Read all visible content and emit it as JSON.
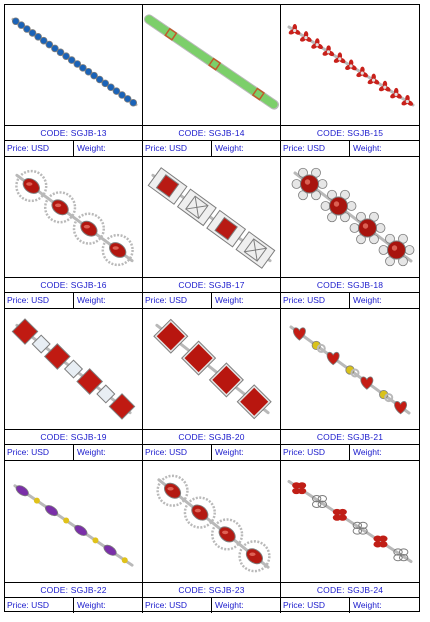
{
  "products": [
    {
      "code": "CODE: SGJB-13",
      "price": "Price: USD",
      "weight": "Weight:",
      "image": "blue-gem-tennis-bracelet",
      "gem_color": "#1a63b8",
      "accent_color": "#0e3f80"
    },
    {
      "code": "CODE: SGJB-14",
      "price": "Price: USD",
      "weight": "Weight:",
      "image": "green-gem-link-bracelet",
      "gem_color": "#7ccf6a",
      "accent_color": "#c05a2a"
    },
    {
      "code": "CODE: SGJB-15",
      "price": "Price: USD",
      "weight": "Weight:",
      "image": "red-gem-flower-bracelet",
      "gem_color": "#c8201a",
      "accent_color": "#e0e0e0"
    },
    {
      "code": "CODE: SGJB-16",
      "price": "Price: USD",
      "weight": "Weight:",
      "image": "garnet-oval-filigree-bracelet",
      "gem_color": "#b2160f",
      "accent_color": "#cfcfcf"
    },
    {
      "code": "CODE: SGJB-17",
      "price": "Price: USD",
      "weight": "Weight:",
      "image": "garnet-square-link-bracelet",
      "gem_color": "#b81a14",
      "accent_color": "#d4d4d4"
    },
    {
      "code": "CODE: SGJB-18",
      "price": "Price: USD",
      "weight": "Weight:",
      "image": "garnet-round-filigree-bracelet",
      "gem_color": "#a8140e",
      "accent_color": "#cbcbcb"
    },
    {
      "code": "CODE: SGJB-19",
      "price": "Price: USD",
      "weight": "Weight:",
      "image": "garnet-square-white-topaz-bracelet",
      "gem_color": "#c01a12",
      "accent_color": "#e8eef4"
    },
    {
      "code": "CODE: SGJB-20",
      "price": "Price: USD",
      "weight": "Weight:",
      "image": "garnet-princess-cut-bracelet",
      "gem_color": "#b8160f",
      "accent_color": "#d6d6d6"
    },
    {
      "code": "CODE: SGJB-21",
      "price": "Price: USD",
      "weight": "Weight:",
      "image": "garnet-heart-citrine-bracelet",
      "gem_color": "#c41c14",
      "accent_color": "#d9c21a"
    },
    {
      "code": "CODE: SGJB-22",
      "price": "Price: USD",
      "weight": "Weight:",
      "image": "amethyst-citrine-bracelet",
      "gem_color": "#7a2fa8",
      "accent_color": "#e0c21a"
    },
    {
      "code": "CODE: SGJB-23",
      "price": "Price: USD",
      "weight": "Weight:",
      "image": "garnet-oval-clover-bracelet",
      "gem_color": "#b41a12",
      "accent_color": "#d8d8d8"
    },
    {
      "code": "CODE: SGJB-24",
      "price": "Price: USD",
      "weight": "Weight:",
      "image": "garnet-flower-clover-bracelet",
      "gem_color": "#c01e16",
      "accent_color": "#d8d8d8"
    }
  ]
}
